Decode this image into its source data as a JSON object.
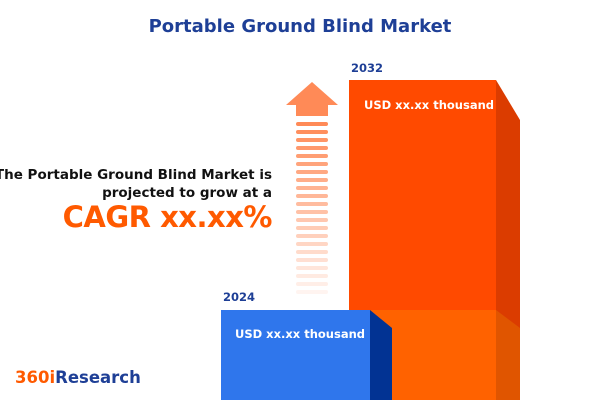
{
  "title": "Portable Ground Blind Market",
  "description_line1": "The Portable Ground Blind Market is",
  "description_line2": "projected to grow at a",
  "cagr_text": "CAGR xx.xx%",
  "logo": {
    "part1": "360i",
    "part2": "Research"
  },
  "colors": {
    "bar_2024": "#2f76ec",
    "bar_2032": "#ff4a00",
    "accent": "#ff5a00",
    "title": "#1e3f96"
  },
  "chart_data": {
    "type": "bar",
    "categories": [
      "2024",
      "2032"
    ],
    "value_labels": [
      "USD xx.xx thousand",
      "USD xx.xx thousand"
    ],
    "series_arrow": "up-arrow-icon",
    "title": "Portable Ground Blind Market"
  }
}
